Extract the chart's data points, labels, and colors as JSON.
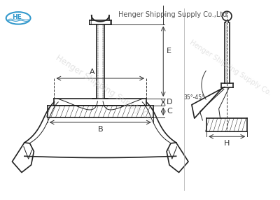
{
  "bg_color": "#ffffff",
  "line_color": "#222222",
  "dim_color": "#333333",
  "watermark_color": "#cccccc",
  "logo_color": "#3399cc",
  "angle_label": "35°-45°",
  "company_text": "Henger Shipping Supply Co.,Ltd",
  "watermark_text": "Henger Shipping Supply Co.",
  "dim_labels": [
    "A",
    "B",
    "C",
    "D",
    "E",
    "H"
  ],
  "figsize": [
    4.0,
    2.86
  ],
  "dpi": 100
}
